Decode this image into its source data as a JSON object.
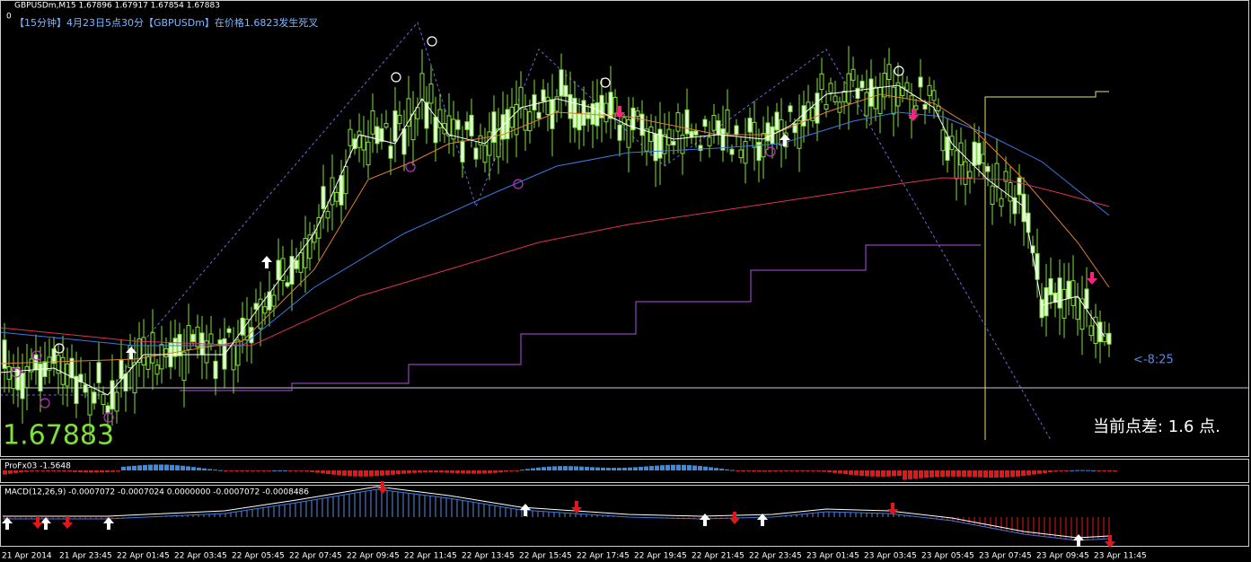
{
  "header": {
    "symbol_info": "GBPUSDm,M15  1.67896 1.67917 1.67854 1.67883",
    "zero": "0",
    "signal_note": "【15分钟】4月23日5点30分【GBPUSDm】在价格1.6823发生死叉"
  },
  "main": {
    "price": "1.67883",
    "timer": "<-8:25",
    "spread": "当前点差: 1.6 点."
  },
  "indicators": {
    "profx": "ProFx03 -1.5648",
    "macd": "MACD(12,26,9) -0.0007072 -0.0007024 0.0000000 -0.0007072 -0.0008486"
  },
  "time_axis": [
    "21 Apr 2014",
    "21 Apr 23:45",
    "22 Apr 01:45",
    "22 Apr 03:45",
    "22 Apr 05:45",
    "22 Apr 07:45",
    "22 Apr 09:45",
    "22 Apr 11:45",
    "22 Apr 13:45",
    "22 Apr 15:45",
    "22 Apr 17:45",
    "22 Apr 19:45",
    "22 Apr 21:45",
    "22 Apr 23:45",
    "23 Apr 01:45",
    "23 Apr 03:45",
    "23 Apr 05:45",
    "23 Apr 07:45",
    "23 Apr 09:45",
    "23 Apr 11:45"
  ]
}
